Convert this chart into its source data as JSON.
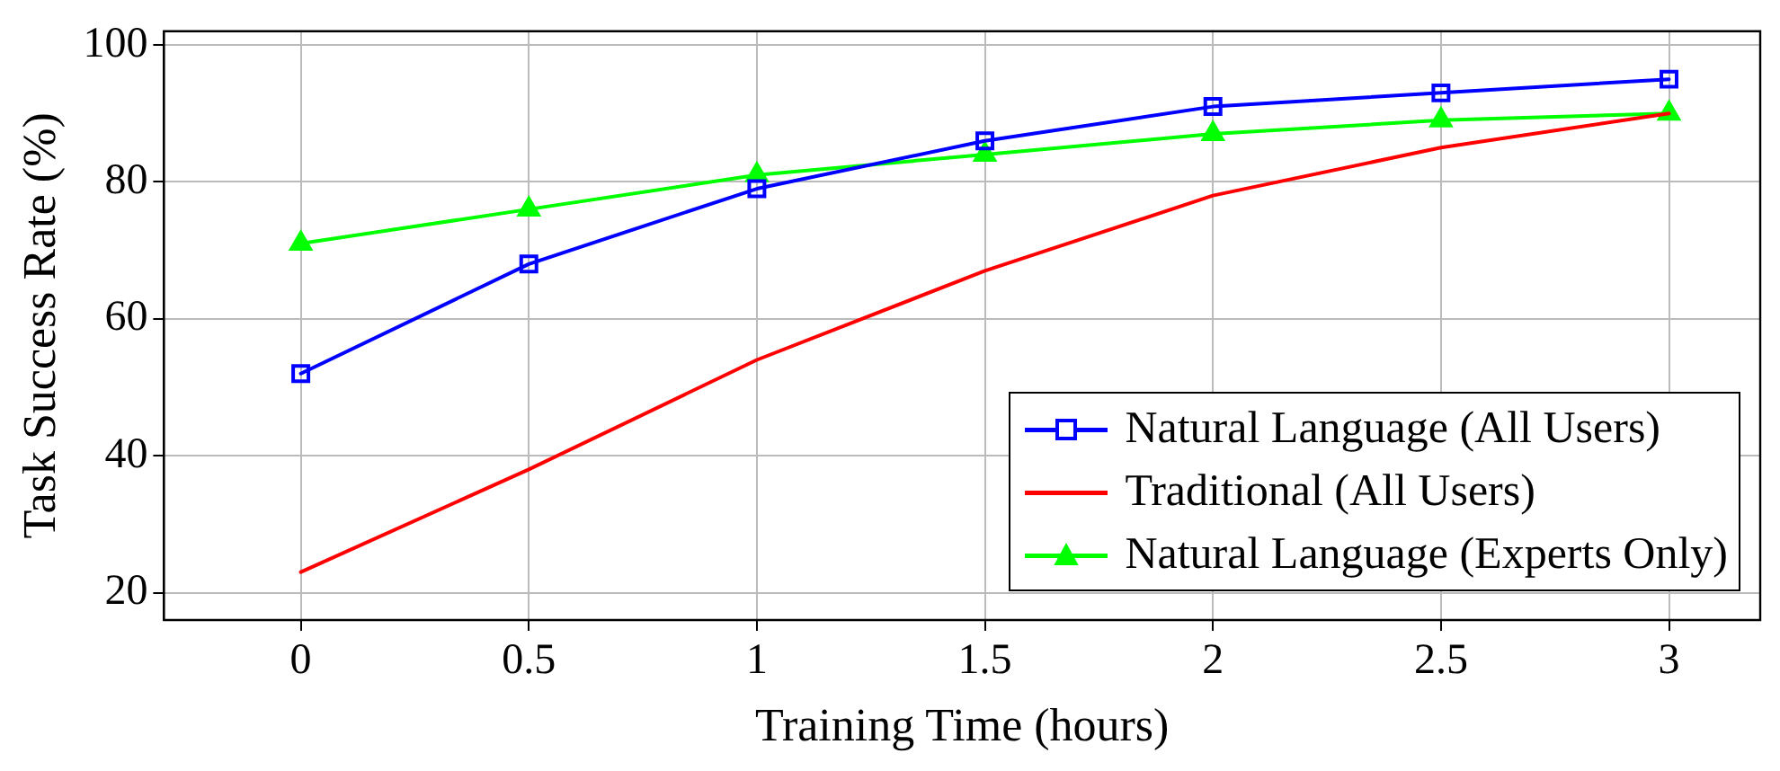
{
  "chart_data": {
    "type": "line",
    "xlabel": "Training Time (hours)",
    "ylabel": "Task Success Rate (%)",
    "x": [
      0,
      0.5,
      1,
      1.5,
      2,
      2.5,
      3
    ],
    "series": [
      {
        "name": "Natural Language (All Users)",
        "color": "#0000ff",
        "marker": "square",
        "values": [
          52,
          68,
          79,
          86,
          91,
          93,
          95
        ]
      },
      {
        "name": "Traditional (All Users)",
        "color": "#ff0000",
        "marker": "none",
        "values": [
          23,
          38,
          54,
          67,
          78,
          85,
          90
        ]
      },
      {
        "name": "Natural Language (Experts Only)",
        "color": "#00ff00",
        "marker": "triangle",
        "values": [
          71,
          76,
          81,
          84,
          87,
          89,
          90
        ]
      }
    ],
    "xlim": [
      -0.3,
      3.2
    ],
    "xticks": [
      0,
      0.5,
      1,
      1.5,
      2,
      2.5,
      3
    ],
    "ylim": [
      16,
      102
    ],
    "yticks": [
      20,
      40,
      60,
      80,
      100
    ],
    "grid": true,
    "legend": "bottom right",
    "line_style": "solid"
  }
}
